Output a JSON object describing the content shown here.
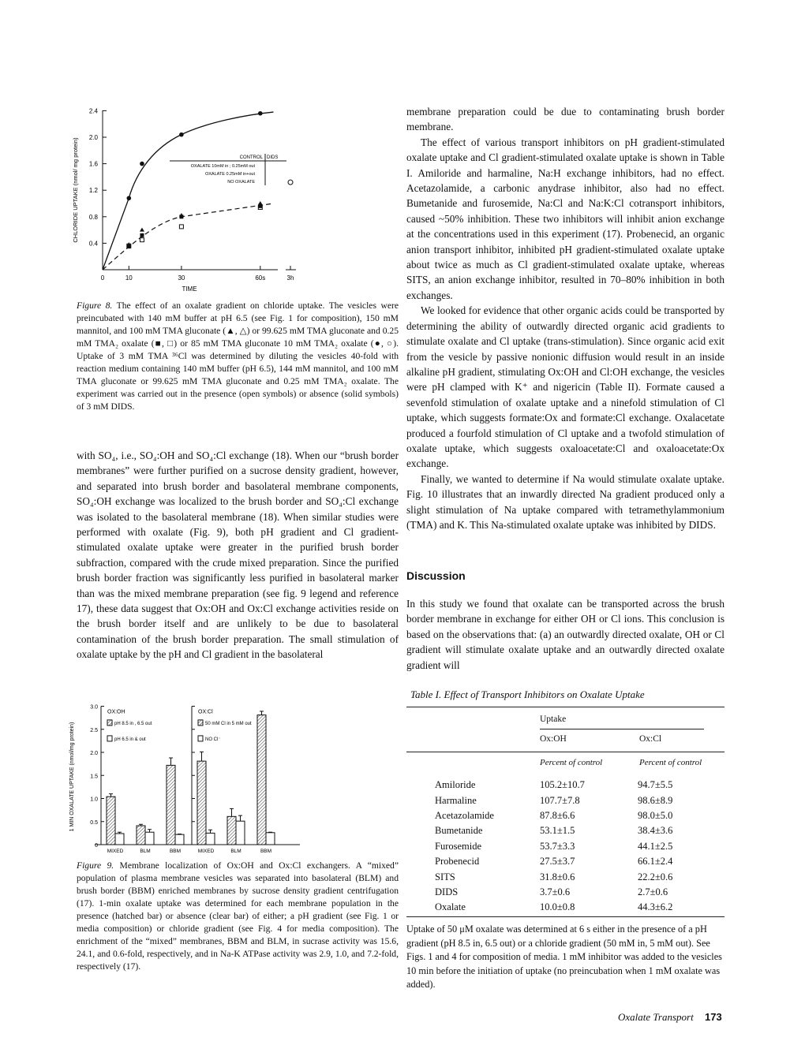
{
  "figure8": {
    "chart_data": {
      "type": "line",
      "xlabel": "TIME",
      "ylabel": "CHLORIDE UPTAKE (nmol/ mg protein)",
      "x_ticks": [
        "0",
        "10",
        "30",
        "60s",
        "3h"
      ],
      "y_ticks": [
        "0.4",
        "0.8",
        "1.2",
        "1.6",
        "2.0",
        "2.4"
      ],
      "ylim": [
        0,
        2.4
      ],
      "legend": {
        "header_control": "CONTROL",
        "header_dids": "DIDS",
        "entries": [
          "OXALATE 10mM in ; 0.25mM out",
          "OXALATE 0.25mM in+out",
          "NO OXALATE"
        ]
      },
      "series": [
        {
          "name": "OXALATE 10mM in ; 0.25mM out",
          "style": "solid",
          "x": [
            0,
            10,
            15,
            30,
            60
          ],
          "y": [
            0,
            1.08,
            1.6,
            2.04,
            2.36
          ],
          "dids_3h": 1.32
        },
        {
          "name": "OXALATE 0.25mM in+out",
          "style": "dashed",
          "x": [
            10,
            15,
            30,
            60
          ],
          "y": [
            0.35,
            0.52,
            0.8,
            0.96
          ],
          "dids": [
            0.36,
            0.45,
            0.65,
            0.94
          ]
        },
        {
          "name": "NO OXALATE",
          "style": "dashed",
          "x": [
            10,
            15,
            30,
            60
          ],
          "y": [
            0.38,
            0.6,
            0.82,
            1.0
          ],
          "dids": [
            0.34,
            0.48,
            0.77,
            1.0
          ]
        }
      ]
    },
    "caption_label": "Figure 8.",
    "caption": "The effect of an oxalate gradient on chloride uptake. The vesicles were preincubated with 140 mM buffer at pH 6.5 (see Fig. 1 for composition), 150 mM mannitol, and 100 mM TMA gluconate (▲, △) or 99.625 mM TMA gluconate and 0.25 mM TMA₂ oxalate (■, □) or 85 mM TMA gluconate 10 mM TMA₂ oxalate (●, ○). Uptake of 3 mM TMA ³⁶Cl was determined by diluting the vesicles 40-fold with reaction medium containing 140 mM buffer (pH 6.5), 144 mM mannitol, and 100 mM TMA gluconate or 99.625 mM TMA gluconate and 0.25 mM TMA₂ oxalate. The experiment was carried out in the presence (open symbols) or absence (solid symbols) of 3 mM DIDS."
  },
  "left_text": "with SO₄, i.e., SO₄:OH and SO₄:Cl exchange (18). When our “brush border membranes” were further purified on a sucrose density gradient, however, and separated into brush border and basolateral membrane components, SO₄:OH exchange was localized to the brush border and SO₄:Cl exchange was isolated to the basolateral membrane (18). When similar studies were performed with oxalate (Fig. 9), both pH gradient and Cl gradient-stimulated oxalate uptake were greater in the purified brush border subfraction, compared with the crude mixed preparation. Since the purified brush border fraction was significantly less purified in basolateral marker than was the mixed membrane preparation (see fig. 9 legend and reference 17), these data suggest that Ox:OH and Ox:Cl exchange activities reside on the brush border itself and are unlikely to be due to basolateral contamination of the brush border preparation. The small stimulation of oxalate uptake by the pH and Cl gradient in the basolateral",
  "figure9": {
    "chart_data": {
      "type": "bar",
      "ylabel": "1 MIN OXALATE UPTAKE (nmol/mg protein)",
      "ylim": [
        0,
        3.0
      ],
      "y_ticks": [
        "0",
        "0.5",
        "1.0",
        "1.5",
        "2.0",
        "2.5",
        "3.0"
      ],
      "panels": [
        {
          "title": "OX:OH",
          "legend": [
            "pH 8.5 in , 6.5 out",
            "pH 6.5 in & out"
          ],
          "categories": [
            "MIXED",
            "BLM",
            "BBM"
          ],
          "series": [
            {
              "name": "pH 8.5 in , 6.5 out",
              "pattern": "hatched",
              "values": [
                1.04,
                0.41,
                1.72
              ],
              "err": [
                0.06,
                0.03,
                0.16
              ]
            },
            {
              "name": "pH 6.5 in & out",
              "pattern": "open",
              "values": [
                0.24,
                0.27,
                0.22
              ],
              "err": [
                0.03,
                0.06,
                0.01
              ]
            }
          ]
        },
        {
          "title": "OX:Cl",
          "legend": [
            "50 mM Cl in 5 mM out",
            "NO Cl⁻"
          ],
          "categories": [
            "MIXED",
            "BLM",
            "BBM"
          ],
          "series": [
            {
              "name": "50 mM Cl in 5 mM out",
              "pattern": "hatched",
              "values": [
                1.81,
                0.61,
                2.81
              ],
              "err": [
                0.2,
                0.17,
                0.08
              ]
            },
            {
              "name": "NO Cl⁻",
              "pattern": "open",
              "values": [
                0.25,
                0.51,
                0.26
              ],
              "err": [
                0.07,
                0.12,
                0.01
              ]
            }
          ]
        }
      ]
    },
    "caption_label": "Figure 9.",
    "caption": "Membrane localization of Ox:OH and Ox:Cl exchangers. A “mixed” population of plasma membrane vesicles was separated into basolateral (BLM) and brush border (BBM) enriched membranes by sucrose density gradient centrifugation (17). 1-min oxalate uptake was determined for each membrane population in the presence (hatched bar) or absence (clear bar) of either; a pH gradient (see Fig. 1 or media composition) or chloride gradient (see Fig. 4 for media composition). The enrichment of the “mixed” membranes, BBM and BLM, in sucrase activity was 15.6, 24.1, and 0.6-fold, respectively, and in Na-K ATPase activity was 2.9, 1.0, and 7.2-fold, respectively (17)."
  },
  "right_paragraphs": [
    "membrane preparation could be due to contaminating brush border membrane.",
    "The effect of various transport inhibitors on pH gradient-stimulated oxalate uptake and Cl gradient-stimulated oxalate uptake is shown in Table I. Amiloride and harmaline, Na:H exchange inhibitors, had no effect. Acetazolamide, a carbonic anydrase inhibitor, also had no effect. Bumetanide and furosemide, Na:Cl and Na:K:Cl cotransport inhibitors, caused ~50% inhibition. These two inhibitors will inhibit anion exchange at the concentrations used in this experiment (17). Probenecid, an organic anion transport inhibitor, inhibited pH gradient-stimulated oxalate uptake about twice as much as Cl gradient-stimulated oxalate uptake, whereas SITS, an anion exchange inhibitor, resulted in 70–80% inhibition in both exchanges.",
    "We looked for evidence that other organic acids could be transported by determining the ability of outwardly directed organic acid gradients to stimulate oxalate and Cl uptake (trans-stimulation). Since organic acid exit from the vesicle by passive nonionic diffusion would result in an inside alkaline pH gradient, stimulating Ox:OH and Cl:OH exchange, the vesicles were pH clamped with K⁺ and nigericin (Table II). Formate caused a sevenfold stimulation of oxalate uptake and a ninefold stimulation of Cl uptake, which suggests formate:Ox and formate:Cl exchange. Oxalacetate produced a fourfold stimulation of Cl uptake and a twofold stimulation of oxalate uptake, which suggests oxaloacetate:Cl and oxaloacetate:Ox exchange.",
    "Finally, we wanted to determine if Na would stimulate oxalate uptake. Fig. 10 illustrates that an inwardly directed Na gradient produced only a slight stimulation of Na uptake compared with tetramethylammonium (TMA) and K. This Na-stimulated oxalate uptake was inhibited by DIDS."
  ],
  "discussion": {
    "heading": "Discussion",
    "text": "In this study we found that oxalate can be transported across the brush border membrane in exchange for either OH or Cl ions. This conclusion is based on the observations that: (a) an outwardly directed oxalate, OH or Cl gradient will stimulate oxalate uptake and an outwardly directed oxalate gradient will"
  },
  "table1": {
    "title": "Table I. Effect of Transport Inhibitors on Oxalate Uptake",
    "group_header": "Uptake",
    "columns": [
      "Ox:OH",
      "Ox:Cl"
    ],
    "units": [
      "Percent of control",
      "Percent of control"
    ],
    "rows": [
      {
        "name": "Amiloride",
        "oxoh": "105.2±10.7",
        "oxcl": "94.7±5.5"
      },
      {
        "name": "Harmaline",
        "oxoh": "107.7±7.8",
        "oxcl": "98.6±8.9"
      },
      {
        "name": "Acetazolamide",
        "oxoh": "87.8±6.6",
        "oxcl": "98.0±5.0"
      },
      {
        "name": "Bumetanide",
        "oxoh": "53.1±1.5",
        "oxcl": "38.4±3.6"
      },
      {
        "name": "Furosemide",
        "oxoh": "53.7±3.3",
        "oxcl": "44.1±2.5"
      },
      {
        "name": "Probenecid",
        "oxoh": "27.5±3.7",
        "oxcl": "66.1±2.4"
      },
      {
        "name": "SITS",
        "oxoh": "31.8±0.6",
        "oxcl": "22.2±0.6"
      },
      {
        "name": "DIDS",
        "oxoh": "3.7±0.6",
        "oxcl": "2.7±0.6"
      },
      {
        "name": "Oxalate",
        "oxoh": "10.0±0.8",
        "oxcl": "44.3±6.2"
      }
    ],
    "footnote": "Uptake of 50 μM oxalate was determined at 6 s either in the presence of a pH gradient (pH 8.5 in, 6.5 out) or a chloride gradient (50 mM in, 5 mM out). See Figs. 1 and 4 for composition of media. 1 mM inhibitor was added to the vesicles 10 min before the initiation of uptake (no preincubation when 1 mM oxalate was added)."
  },
  "footer": {
    "running_title": "Oxalate Transport",
    "page_number": "173"
  }
}
